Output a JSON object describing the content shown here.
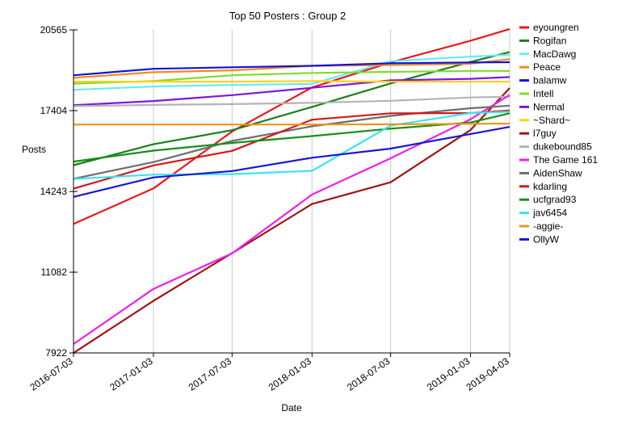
{
  "chart_data": {
    "type": "line",
    "title": "Top 50 Posters : Group 2",
    "xlabel": "Date",
    "ylabel": "Posts",
    "x": [
      "2016-07-03",
      "2017-01-03",
      "2017-07-03",
      "2018-01-03",
      "2018-07-03",
      "2019-01-03",
      "2019-04-03"
    ],
    "y_ticks": [
      "7922",
      "11082",
      "14243",
      "17404",
      "20565"
    ],
    "ylim": [
      7922,
      20565
    ],
    "grid": "vertical",
    "legend_position": "right",
    "series": [
      {
        "name": "eyoungren",
        "color": "#e8191c",
        "values": [
          12970,
          14360,
          16590,
          18310,
          19290,
          20140,
          20600
        ]
      },
      {
        "name": "Rogifan",
        "color": "#1a7f1a",
        "values": [
          15270,
          16090,
          16640,
          17550,
          18470,
          19310,
          19700
        ]
      },
      {
        "name": "MacDawg",
        "color": "#66ecf4",
        "values": [
          18220,
          18350,
          18410,
          18450,
          19340,
          19520,
          19590
        ]
      },
      {
        "name": "Peace",
        "color": "#f58a1a",
        "values": [
          18690,
          18910,
          18980,
          19160,
          19190,
          19240,
          19420
        ]
      },
      {
        "name": "balamw",
        "color": "#1111dd",
        "values": [
          18790,
          19040,
          19100,
          19160,
          19260,
          19290,
          19300
        ]
      },
      {
        "name": "Intell",
        "color": "#7fdc2a",
        "values": [
          18460,
          18560,
          18790,
          18880,
          18920,
          18960,
          18960
        ]
      },
      {
        "name": "Nermal",
        "color": "#7b17e0",
        "values": [
          17620,
          17780,
          18010,
          18300,
          18590,
          18650,
          18720
        ]
      },
      {
        "name": "~Shard~",
        "color": "#ffd11a",
        "values": [
          18540,
          18540,
          18540,
          18560,
          18540,
          18540,
          18540
        ]
      },
      {
        "name": "l7guy",
        "color": "#a11515",
        "values": [
          7920,
          9960,
          11830,
          13750,
          14600,
          16650,
          18290
        ]
      },
      {
        "name": "dukebound85",
        "color": "#b4b4b4",
        "values": [
          17580,
          17630,
          17660,
          17710,
          17790,
          17920,
          17950
        ]
      },
      {
        "name": "The Game 161",
        "color": "#ef1ded",
        "values": [
          8270,
          10430,
          11820,
          14120,
          15540,
          17070,
          18020
        ]
      },
      {
        "name": "AidenShaw",
        "color": "#6e6e6e",
        "values": [
          14740,
          15390,
          16220,
          16790,
          17200,
          17500,
          17600
        ]
      },
      {
        "name": "kdarling",
        "color": "#d51818",
        "values": [
          14350,
          15260,
          15830,
          17050,
          17300,
          17310,
          17410
        ]
      },
      {
        "name": "ucfgrad93",
        "color": "#178f17",
        "values": [
          15410,
          15840,
          16140,
          16410,
          16700,
          16940,
          17300
        ]
      },
      {
        "name": "jav6454",
        "color": "#3de4f2",
        "values": [
          14730,
          14900,
          14920,
          15050,
          16820,
          17310,
          17360
        ]
      },
      {
        "name": "-aggie-",
        "color": "#f0941c",
        "values": [
          16860,
          16860,
          16860,
          16860,
          16870,
          16890,
          16900
        ]
      },
      {
        "name": "OllyW",
        "color": "#1818d0",
        "values": [
          14030,
          14790,
          15040,
          15560,
          15920,
          16490,
          16770
        ]
      }
    ]
  }
}
